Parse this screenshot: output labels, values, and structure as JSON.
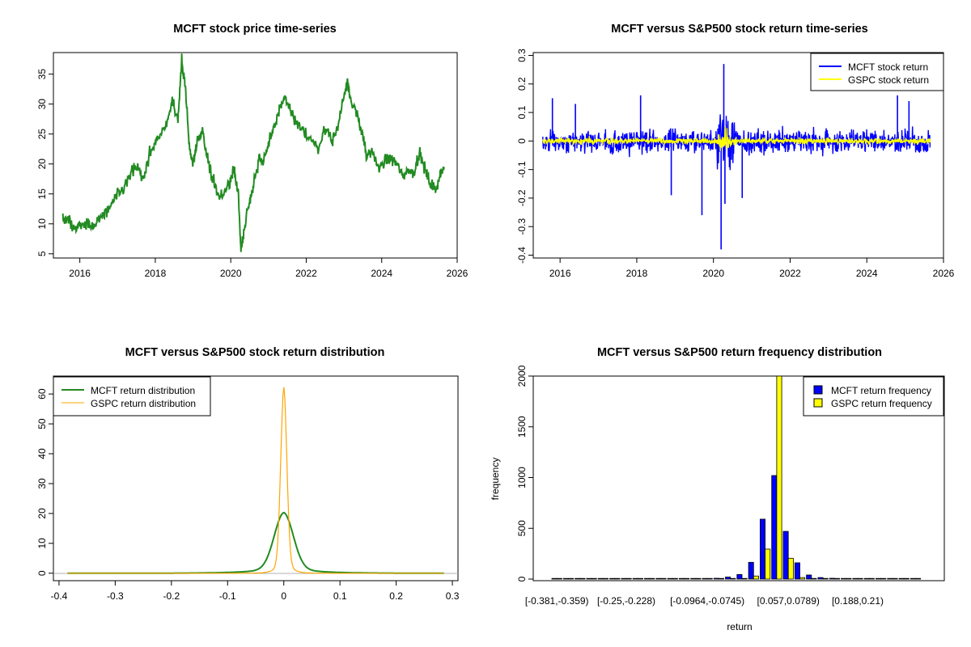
{
  "chart_data": [
    {
      "type": "line",
      "title": "MCFT stock price time-series",
      "xlabel": "",
      "ylabel": "",
      "xlim": [
        2015.3,
        2026.0
      ],
      "ylim": [
        4.3,
        38.6
      ],
      "x_ticks": [
        2016,
        2018,
        2020,
        2022,
        2024,
        2026
      ],
      "y_ticks": [
        5,
        10,
        15,
        20,
        25,
        30,
        35
      ],
      "grid": false,
      "colors": {
        "line": "#228B22"
      },
      "series": [
        {
          "x": [
            2015.55,
            2015.7,
            2015.85,
            2016.0,
            2016.2,
            2016.35,
            2016.5,
            2016.65,
            2016.8,
            2016.95,
            2017.1,
            2017.3,
            2017.5,
            2017.7,
            2017.85,
            2018.0,
            2018.15,
            2018.3,
            2018.45,
            2018.6,
            2018.7,
            2018.8,
            2018.9,
            2019.0,
            2019.1,
            2019.25,
            2019.4,
            2019.55,
            2019.7,
            2019.85,
            2020.0,
            2020.1,
            2020.2,
            2020.27,
            2020.35,
            2020.5,
            2020.6,
            2020.75,
            2020.85,
            2021.0,
            2021.15,
            2021.3,
            2021.45,
            2021.6,
            2021.75,
            2021.9,
            2022.1,
            2022.3,
            2022.5,
            2022.7,
            2022.85,
            2023.0,
            2023.1,
            2023.2,
            2023.35,
            2023.5,
            2023.6,
            2023.75,
            2023.9,
            2024.1,
            2024.25,
            2024.4,
            2024.55,
            2024.7,
            2024.85,
            2025.0,
            2025.15,
            2025.3,
            2025.45,
            2025.55,
            2025.65
          ],
          "y": [
            11.3,
            10.5,
            9.0,
            9.8,
            10.2,
            9.2,
            11.0,
            11.6,
            12.8,
            14.5,
            15.2,
            17.5,
            19.8,
            17.5,
            22.0,
            23.5,
            25.0,
            26.5,
            30.5,
            27.5,
            37.0,
            33.0,
            23.0,
            20.0,
            23.5,
            25.5,
            20.5,
            17.0,
            14.5,
            15.0,
            17.5,
            19.0,
            15.0,
            5.5,
            9.0,
            14.0,
            16.5,
            21.0,
            20.5,
            23.0,
            26.0,
            29.5,
            31.0,
            28.5,
            26.5,
            25.5,
            24.5,
            22.5,
            26.0,
            24.0,
            26.5,
            31.5,
            34.0,
            30.0,
            28.0,
            25.0,
            21.0,
            22.0,
            19.5,
            20.5,
            21.0,
            20.0,
            18.0,
            19.0,
            18.5,
            22.0,
            19.0,
            16.5,
            16.0,
            18.0,
            19.5
          ]
        }
      ]
    },
    {
      "type": "line",
      "title": "MCFT versus S&P500 stock return time-series",
      "xlabel": "",
      "ylabel": "",
      "xlim": [
        2015.3,
        2026.0
      ],
      "ylim": [
        -0.41,
        0.31
      ],
      "x_ticks": [
        2016,
        2018,
        2020,
        2022,
        2024,
        2026
      ],
      "y_ticks": [
        -0.4,
        -0.3,
        -0.2,
        -0.1,
        0.0,
        0.1,
        0.2,
        0.3
      ],
      "grid": false,
      "legend_position": "top-right",
      "series": [
        {
          "name": "MCFT stock return",
          "color": "#0000FF"
        },
        {
          "name": "GSPC stock return",
          "color": "#FFFF00"
        }
      ],
      "spikes": [
        {
          "x": 2015.8,
          "y": 0.15
        },
        {
          "x": 2016.4,
          "y": 0.13
        },
        {
          "x": 2018.1,
          "y": 0.16
        },
        {
          "x": 2018.9,
          "y": -0.19
        },
        {
          "x": 2019.7,
          "y": -0.26
        },
        {
          "x": 2020.2,
          "y": -0.38
        },
        {
          "x": 2020.27,
          "y": 0.27
        },
        {
          "x": 2020.3,
          "y": -0.22
        },
        {
          "x": 2020.75,
          "y": -0.2
        },
        {
          "x": 2024.8,
          "y": 0.16
        },
        {
          "x": 2025.1,
          "y": 0.14
        }
      ]
    },
    {
      "type": "line",
      "title": "MCFT versus S&P500 stock return distribution",
      "xlabel": "",
      "ylabel": "",
      "xlim": [
        -0.41,
        0.31
      ],
      "ylim": [
        -2.5,
        66.0
      ],
      "x_ticks": [
        -0.4,
        -0.3,
        -0.2,
        -0.1,
        0.0,
        0.1,
        0.2,
        0.3
      ],
      "y_ticks": [
        0,
        10,
        20,
        30,
        40,
        50,
        60
      ],
      "grid": false,
      "legend_position": "top-left",
      "series": [
        {
          "name": "MCFT return distribution",
          "color": "#228B22",
          "peak_x": 0.0,
          "peak_y": 20.3
        },
        {
          "name": "GSPC return distribution",
          "color": "#FFA500",
          "peak_x": 0.0,
          "peak_y": 62.5
        }
      ]
    },
    {
      "type": "bar",
      "title": "MCFT versus S&P500 return frequency distribution",
      "xlabel": "return",
      "ylabel": "frequency",
      "ylim": [
        0,
        2000
      ],
      "y_ticks": [
        0,
        500,
        1000,
        1500,
        2000
      ],
      "x_tick_labels": [
        "[-0.381,-0.359)",
        "[-0.25,-0.228)",
        "[-0.0964,-0.0745)",
        "[0.057,0.0789)",
        "[0.188,0.21)"
      ],
      "x_tick_bins": [
        0,
        6,
        13,
        20,
        26
      ],
      "grid": false,
      "legend_position": "top-right",
      "series": [
        {
          "name": "MCFT return frequency",
          "color": "#0000FF",
          "values": [
            1,
            0,
            0,
            0,
            0,
            0,
            1,
            2,
            1,
            1,
            1,
            1,
            3,
            5,
            8,
            20,
            45,
            165,
            590,
            1020,
            470,
            160,
            40,
            15,
            8,
            5,
            3,
            2,
            1,
            0,
            0,
            0
          ]
        },
        {
          "name": "GSPC return frequency",
          "color": "#FFFF00",
          "values": [
            0,
            0,
            0,
            0,
            0,
            0,
            0,
            0,
            0,
            0,
            0,
            0,
            0,
            0,
            0,
            1,
            4,
            30,
            295,
            2000,
            205,
            15,
            3,
            1,
            0,
            0,
            0,
            0,
            0,
            0,
            0,
            0
          ]
        }
      ]
    }
  ]
}
